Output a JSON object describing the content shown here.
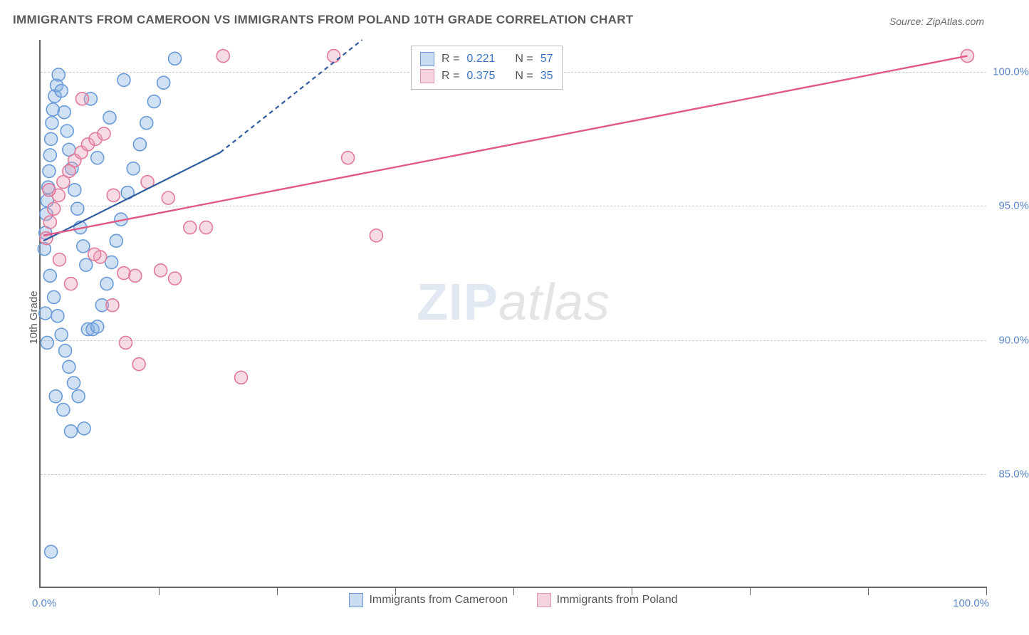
{
  "title": "IMMIGRANTS FROM CAMEROON VS IMMIGRANTS FROM POLAND 10TH GRADE CORRELATION CHART",
  "source_label": "Source: ZipAtlas.com",
  "y_axis_label": "10th Grade",
  "watermark_a": "ZIP",
  "watermark_b": "atlas",
  "chart": {
    "type": "scatter-correlation",
    "background_color": "#ffffff",
    "grid_color": "#cccccc",
    "axis_color": "#666666",
    "tick_label_color": "#5b87c7",
    "xlim": [
      0,
      100
    ],
    "ylim": [
      80.8,
      101.2
    ],
    "x_ticks": [
      0,
      12.5,
      25,
      37.5,
      50,
      62.5,
      75,
      87.5,
      100
    ],
    "x_tick_labels_shown": {
      "0": "0.0%",
      "100": "100.0%"
    },
    "y_gridlines": [
      85,
      90,
      95,
      100
    ],
    "y_tick_labels": {
      "85": "85.0%",
      "90": "90.0%",
      "95": "95.0%",
      "100": "100.0%"
    },
    "marker_radius": 9,
    "marker_stroke_width": 1.6,
    "series": [
      {
        "id": "cameroon",
        "label": "Immigrants from Cameroon",
        "fill": "rgba(135,175,225,0.38)",
        "stroke": "#6a9bd8",
        "r_value": "0.221",
        "n_value": "57",
        "trend": {
          "solid": {
            "x1": 0.3,
            "y1": 93.7,
            "x2": 19,
            "y2": 97.0
          },
          "dashed": {
            "x1": 19,
            "y1": 97.0,
            "x2": 34,
            "y2": 101.2
          },
          "stroke": "#2e5aa0",
          "width": 2.2
        },
        "points": [
          [
            0.4,
            93.4
          ],
          [
            0.5,
            94.0
          ],
          [
            0.6,
            94.7
          ],
          [
            0.7,
            95.2
          ],
          [
            0.8,
            95.7
          ],
          [
            0.9,
            96.3
          ],
          [
            1.0,
            96.9
          ],
          [
            1.1,
            97.5
          ],
          [
            1.2,
            98.1
          ],
          [
            1.3,
            98.6
          ],
          [
            1.5,
            99.1
          ],
          [
            1.7,
            99.5
          ],
          [
            1.9,
            99.9
          ],
          [
            2.2,
            99.3
          ],
          [
            2.5,
            98.5
          ],
          [
            2.8,
            97.8
          ],
          [
            3.0,
            97.1
          ],
          [
            3.3,
            96.4
          ],
          [
            3.6,
            95.6
          ],
          [
            3.9,
            94.9
          ],
          [
            4.2,
            94.2
          ],
          [
            4.5,
            93.5
          ],
          [
            4.8,
            92.8
          ],
          [
            1.0,
            92.4
          ],
          [
            1.4,
            91.6
          ],
          [
            1.8,
            90.9
          ],
          [
            2.2,
            90.2
          ],
          [
            2.6,
            89.6
          ],
          [
            3.0,
            89.0
          ],
          [
            3.5,
            88.4
          ],
          [
            4.0,
            87.9
          ],
          [
            5.0,
            90.4
          ],
          [
            5.5,
            90.4
          ],
          [
            6.0,
            90.5
          ],
          [
            6.5,
            91.3
          ],
          [
            7.0,
            92.1
          ],
          [
            7.5,
            92.9
          ],
          [
            8.0,
            93.7
          ],
          [
            8.5,
            94.5
          ],
          [
            9.2,
            95.5
          ],
          [
            9.8,
            96.4
          ],
          [
            10.5,
            97.3
          ],
          [
            11.2,
            98.1
          ],
          [
            12.0,
            98.9
          ],
          [
            13.0,
            99.6
          ],
          [
            14.2,
            100.5
          ],
          [
            3.2,
            86.6
          ],
          [
            4.6,
            86.7
          ],
          [
            1.6,
            87.9
          ],
          [
            2.4,
            87.4
          ],
          [
            6.0,
            96.8
          ],
          [
            7.3,
            98.3
          ],
          [
            5.3,
            99.0
          ],
          [
            8.8,
            99.7
          ],
          [
            1.1,
            82.1
          ],
          [
            0.7,
            89.9
          ],
          [
            0.5,
            91.0
          ]
        ]
      },
      {
        "id": "poland",
        "label": "Immigrants from Poland",
        "fill": "rgba(235,160,185,0.38)",
        "stroke": "#e27a9a",
        "r_value": "0.375",
        "n_value": "35",
        "trend": {
          "solid": {
            "x1": 0.3,
            "y1": 93.9,
            "x2": 98,
            "y2": 100.6
          },
          "dashed": null,
          "stroke": "#e05a85",
          "width": 2.4
        },
        "points": [
          [
            0.6,
            93.8
          ],
          [
            1.0,
            94.4
          ],
          [
            1.4,
            94.9
          ],
          [
            1.9,
            95.4
          ],
          [
            2.4,
            95.9
          ],
          [
            3.0,
            96.3
          ],
          [
            3.6,
            96.7
          ],
          [
            4.3,
            97.0
          ],
          [
            5.0,
            97.3
          ],
          [
            5.8,
            97.5
          ],
          [
            6.7,
            97.7
          ],
          [
            7.7,
            95.4
          ],
          [
            8.8,
            92.5
          ],
          [
            10.0,
            92.4
          ],
          [
            11.3,
            95.9
          ],
          [
            12.7,
            92.6
          ],
          [
            14.2,
            92.3
          ],
          [
            15.8,
            94.2
          ],
          [
            17.5,
            94.2
          ],
          [
            19.3,
            100.6
          ],
          [
            21.2,
            88.6
          ],
          [
            9.0,
            89.9
          ],
          [
            10.4,
            89.1
          ],
          [
            7.6,
            91.3
          ],
          [
            6.3,
            93.1
          ],
          [
            31.0,
            100.6
          ],
          [
            32.5,
            96.8
          ],
          [
            35.5,
            93.9
          ],
          [
            98.0,
            100.6
          ],
          [
            0.9,
            95.6
          ],
          [
            2.0,
            93.0
          ],
          [
            3.2,
            92.1
          ],
          [
            4.4,
            99.0
          ],
          [
            5.7,
            93.2
          ],
          [
            13.5,
            95.3
          ]
        ]
      }
    ]
  },
  "legend_top": {
    "r_label": "R  =",
    "n_label": "N  ="
  },
  "legend_bottom_series": [
    "cameroon",
    "poland"
  ]
}
